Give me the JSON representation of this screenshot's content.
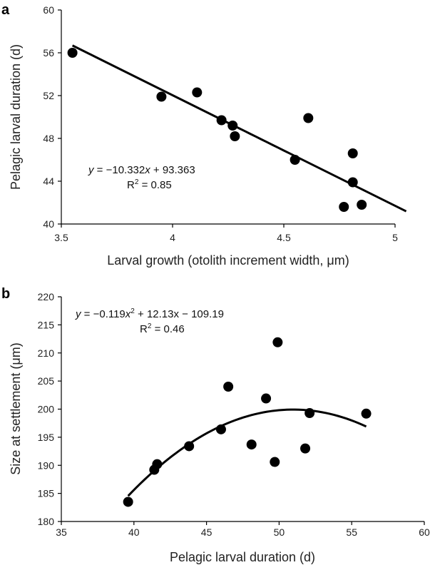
{
  "chart_data": [
    {
      "panel": "a",
      "type": "scatter",
      "xlabel": "Larval growth (otolith increment width, μm)",
      "ylabel": "Pelagic larval duration (d)",
      "xlim": [
        3.5,
        5.0
      ],
      "ylim": [
        40,
        60
      ],
      "xticks": [
        3.5,
        4,
        4.5,
        5
      ],
      "xtick_labels": [
        "3.5",
        "4",
        "4.5",
        "5"
      ],
      "yticks": [
        40,
        44,
        48,
        52,
        56,
        60
      ],
      "ytick_labels": [
        "40",
        "44",
        "48",
        "52",
        "56",
        "60"
      ],
      "points": [
        {
          "x": 3.55,
          "y": 56.0
        },
        {
          "x": 3.95,
          "y": 51.9
        },
        {
          "x": 4.11,
          "y": 52.3
        },
        {
          "x": 4.22,
          "y": 49.7
        },
        {
          "x": 4.27,
          "y": 49.2
        },
        {
          "x": 4.28,
          "y": 48.2
        },
        {
          "x": 4.55,
          "y": 46.0
        },
        {
          "x": 4.61,
          "y": 49.9
        },
        {
          "x": 4.77,
          "y": 41.6
        },
        {
          "x": 4.81,
          "y": 43.9
        },
        {
          "x": 4.81,
          "y": 46.6
        },
        {
          "x": 4.85,
          "y": 41.8
        }
      ],
      "fit": {
        "kind": "linear",
        "coef": [
          -10.332,
          93.363
        ],
        "x_range": [
          3.55,
          5.05
        ]
      },
      "equation": {
        "prefix": "y",
        "middle": " = −10.332",
        "var": "x",
        "suffix": " + 93.363"
      },
      "r2": {
        "label": "R",
        "sup": "2",
        "value": " = 0.85"
      },
      "grid": false
    },
    {
      "panel": "b",
      "type": "scatter",
      "xlabel": "Pelagic larval duration (d)",
      "ylabel": "Size at settlement (μm)",
      "xlim": [
        35,
        60
      ],
      "ylim": [
        180,
        220
      ],
      "xticks": [
        35,
        40,
        45,
        50,
        55,
        60
      ],
      "xtick_labels": [
        "35",
        "40",
        "45",
        "50",
        "55",
        "60"
      ],
      "yticks": [
        180,
        185,
        190,
        195,
        200,
        205,
        210,
        215,
        220
      ],
      "ytick_labels": [
        "180",
        "185",
        "190",
        "195",
        "200",
        "205",
        "210",
        "215",
        "220"
      ],
      "points": [
        {
          "x": 39.6,
          "y": 183.5
        },
        {
          "x": 41.4,
          "y": 189.2
        },
        {
          "x": 41.6,
          "y": 190.2
        },
        {
          "x": 43.8,
          "y": 193.4
        },
        {
          "x": 46.0,
          "y": 196.4
        },
        {
          "x": 46.5,
          "y": 204.0
        },
        {
          "x": 48.1,
          "y": 193.7
        },
        {
          "x": 49.1,
          "y": 201.9
        },
        {
          "x": 49.7,
          "y": 190.6
        },
        {
          "x": 49.9,
          "y": 211.9
        },
        {
          "x": 51.8,
          "y": 193.0
        },
        {
          "x": 52.1,
          "y": 199.3
        },
        {
          "x": 56.0,
          "y": 199.2
        }
      ],
      "fit": {
        "kind": "quadratic",
        "coef": [
          -0.119,
          12.13,
          -109.19
        ],
        "x_range": [
          39.6,
          56.0
        ]
      },
      "equation": {
        "prefix": "y",
        "mid1": " = −0.119",
        "var": "x",
        "sup": "2",
        "suffix": " + 12.13x − 109.19"
      },
      "r2": {
        "label": "R",
        "sup": "2",
        "value": " = 0.46"
      },
      "grid": false
    }
  ]
}
